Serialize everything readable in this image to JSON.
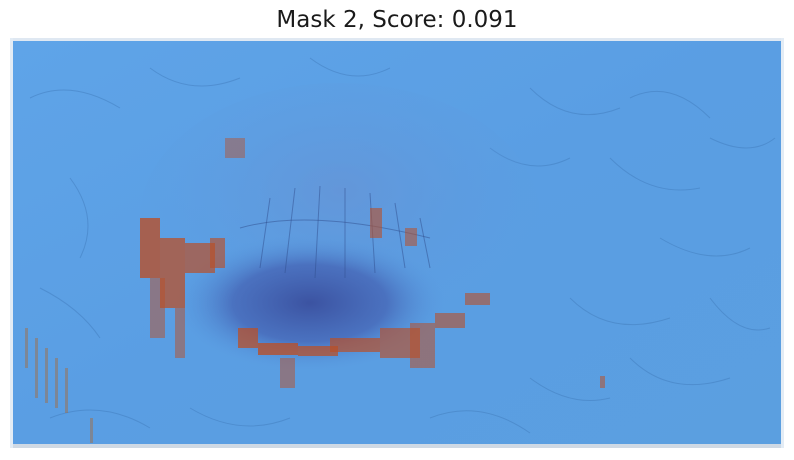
{
  "figure": {
    "title": "Mask 2, Score: 0.091"
  },
  "image": {
    "subject": "skin-lesion-with-mask-overlay",
    "colors": {
      "overlay_blue": "#5a9ee3",
      "lesion_dark": "#3f56a8",
      "lesion_edge": "#b8502a",
      "frame_border": "#e8eef5"
    }
  }
}
